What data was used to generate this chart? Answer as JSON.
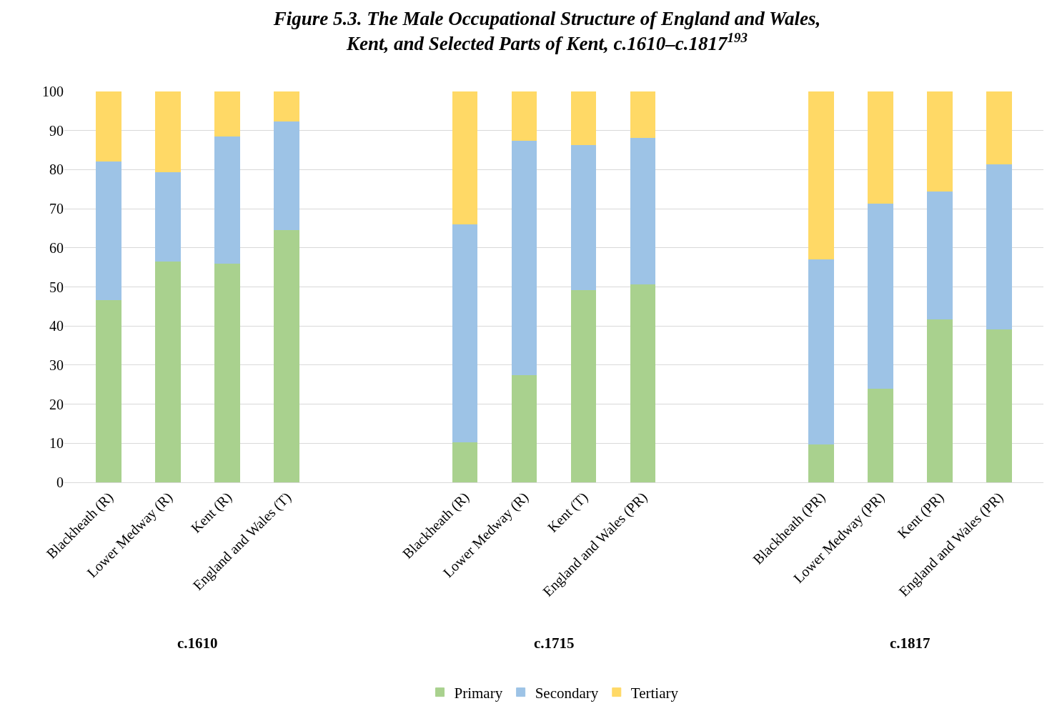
{
  "chart_data": {
    "type": "bar",
    "stacked": true,
    "title": "Figure 5.3. The Male Occupational Structure of England and Wales,\nKent, and Selected Parts of Kent, c.1610–c.1817$^{193}$",
    "categories": [
      "Blackheath (R)",
      "Lower Medway (R)",
      "Kent (R)",
      "England and Wales (T)",
      null,
      null,
      "Blackheath (R)",
      "Lower Medway (R)",
      "Kent (T)",
      "England and Wales (PR)",
      null,
      null,
      "Blackheath (PR)",
      "Lower Medway (PR)",
      "Kent (PR)",
      "England and Wales (PR)"
    ],
    "series": [
      {
        "name": "Primary",
        "color": "#a9d18e",
        "values": [
          46.8,
          56.5,
          56.1,
          64.7,
          null,
          null,
          10.4,
          27.5,
          49.2,
          50.8,
          null,
          null,
          9.7,
          24.0,
          41.7,
          39.3
        ]
      },
      {
        "name": "Secondary",
        "color": "#9dc3e6",
        "values": [
          35.3,
          22.9,
          32.4,
          27.8,
          null,
          null,
          55.7,
          59.9,
          37.1,
          37.4,
          null,
          null,
          47.5,
          47.4,
          32.8,
          42.1
        ]
      },
      {
        "name": "Tertiary",
        "color": "#ffd966",
        "values": [
          17.9,
          20.6,
          11.5,
          7.5,
          null,
          null,
          33.9,
          12.6,
          13.7,
          11.8,
          null,
          null,
          42.8,
          28.6,
          25.5,
          18.6
        ]
      }
    ],
    "ylim": [
      0,
      100
    ],
    "yticks": [
      0,
      10,
      20,
      30,
      40,
      50,
      60,
      70,
      80,
      90,
      100
    ],
    "grid": "y",
    "legend": "bottom",
    "annotations": [
      "c.1610",
      "c.1715",
      "c.1817"
    ]
  }
}
